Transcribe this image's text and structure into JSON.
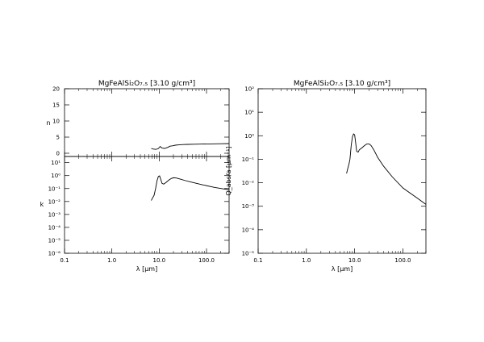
{
  "chart_data": [
    {
      "type": "line",
      "panel": "n",
      "title": "MgFeAlSi₂O₇.₅ [3.10 g/cm³]",
      "xlabel": "",
      "ylabel": "n",
      "xscale": "log",
      "yscale": "linear",
      "xlim": [
        0.1,
        300
      ],
      "ylim": [
        -1,
        20
      ],
      "xticks": [
        0.1,
        1.0,
        10.0,
        100.0
      ],
      "xtick_labels": [
        "",
        "",
        "",
        ""
      ],
      "yticks": [
        0,
        5,
        10,
        15,
        20
      ],
      "ytick_labels": [
        "0",
        "5",
        "10",
        "15",
        "20"
      ],
      "series": [
        {
          "x": [
            6.8,
            7.5,
            8.5,
            9.5,
            10.5,
            11.5,
            13,
            15,
            17,
            19,
            22,
            26,
            32,
            40,
            55,
            80,
            120,
            200,
            300
          ],
          "y": [
            1.5,
            1.3,
            1.2,
            1.4,
            2.1,
            1.6,
            1.5,
            1.8,
            2.2,
            2.3,
            2.5,
            2.6,
            2.7,
            2.75,
            2.8,
            2.85,
            2.9,
            2.95,
            3.0
          ]
        }
      ]
    },
    {
      "type": "line",
      "panel": "k",
      "title": "",
      "xlabel": "λ [μm]",
      "ylabel": "k",
      "xscale": "log",
      "yscale": "log",
      "xlim": [
        0.1,
        300
      ],
      "ylim": [
        1e-06,
        30
      ],
      "xticks": [
        0.1,
        1.0,
        10.0,
        100.0
      ],
      "xtick_labels": [
        "0.1",
        "1.0",
        "10.0",
        "100.0"
      ],
      "ytick_labels": [
        "10¹",
        "10⁰",
        "10⁻¹",
        "10⁻²",
        "10⁻³",
        "10⁻⁴",
        "10⁻⁵",
        "10⁻⁶"
      ],
      "series": [
        {
          "x": [
            6.8,
            7.2,
            7.8,
            8.4,
            9.0,
            9.6,
            10.2,
            10.8,
            11.5,
            12.5,
            14,
            16,
            18,
            20,
            23,
            27,
            35,
            50,
            80,
            150,
            300
          ],
          "y": [
            0.012,
            0.018,
            0.03,
            0.1,
            0.4,
            0.85,
            0.95,
            0.5,
            0.25,
            0.22,
            0.3,
            0.45,
            0.6,
            0.68,
            0.65,
            0.55,
            0.42,
            0.3,
            0.2,
            0.12,
            0.08
          ]
        }
      ]
    },
    {
      "type": "line",
      "panel": "Q",
      "title": "MgFeAlSi₂O₇.₅ [3.10 g/cm³]",
      "xlabel": "λ [μm]",
      "ylabel": "Q_abs/a [μm⁻¹]",
      "xscale": "log",
      "yscale": "log",
      "xlim": [
        0.1,
        300
      ],
      "ylim": [
        1e-05,
        100
      ],
      "xticks": [
        0.1,
        1.0,
        10.0,
        100.0
      ],
      "xtick_labels": [
        "0.1",
        "1.0",
        "10.0",
        "100.0"
      ],
      "ytick_labels": [
        "10²",
        "10¹",
        "10⁰",
        "10⁻¹",
        "10⁻²",
        "10⁻³",
        "10⁻⁴",
        "10⁻⁵"
      ],
      "series": [
        {
          "x": [
            6.8,
            7.2,
            7.6,
            8.0,
            8.5,
            9.0,
            9.5,
            10.0,
            10.5,
            11.0,
            11.8,
            12.5,
            14,
            16,
            18,
            20,
            22,
            25,
            30,
            40,
            60,
            100,
            200,
            300
          ],
          "y": [
            0.025,
            0.04,
            0.06,
            0.1,
            0.4,
            0.9,
            1.2,
            1.1,
            0.5,
            0.22,
            0.2,
            0.25,
            0.3,
            0.38,
            0.45,
            0.45,
            0.38,
            0.25,
            0.12,
            0.05,
            0.018,
            0.006,
            0.0022,
            0.0012
          ]
        }
      ]
    }
  ]
}
